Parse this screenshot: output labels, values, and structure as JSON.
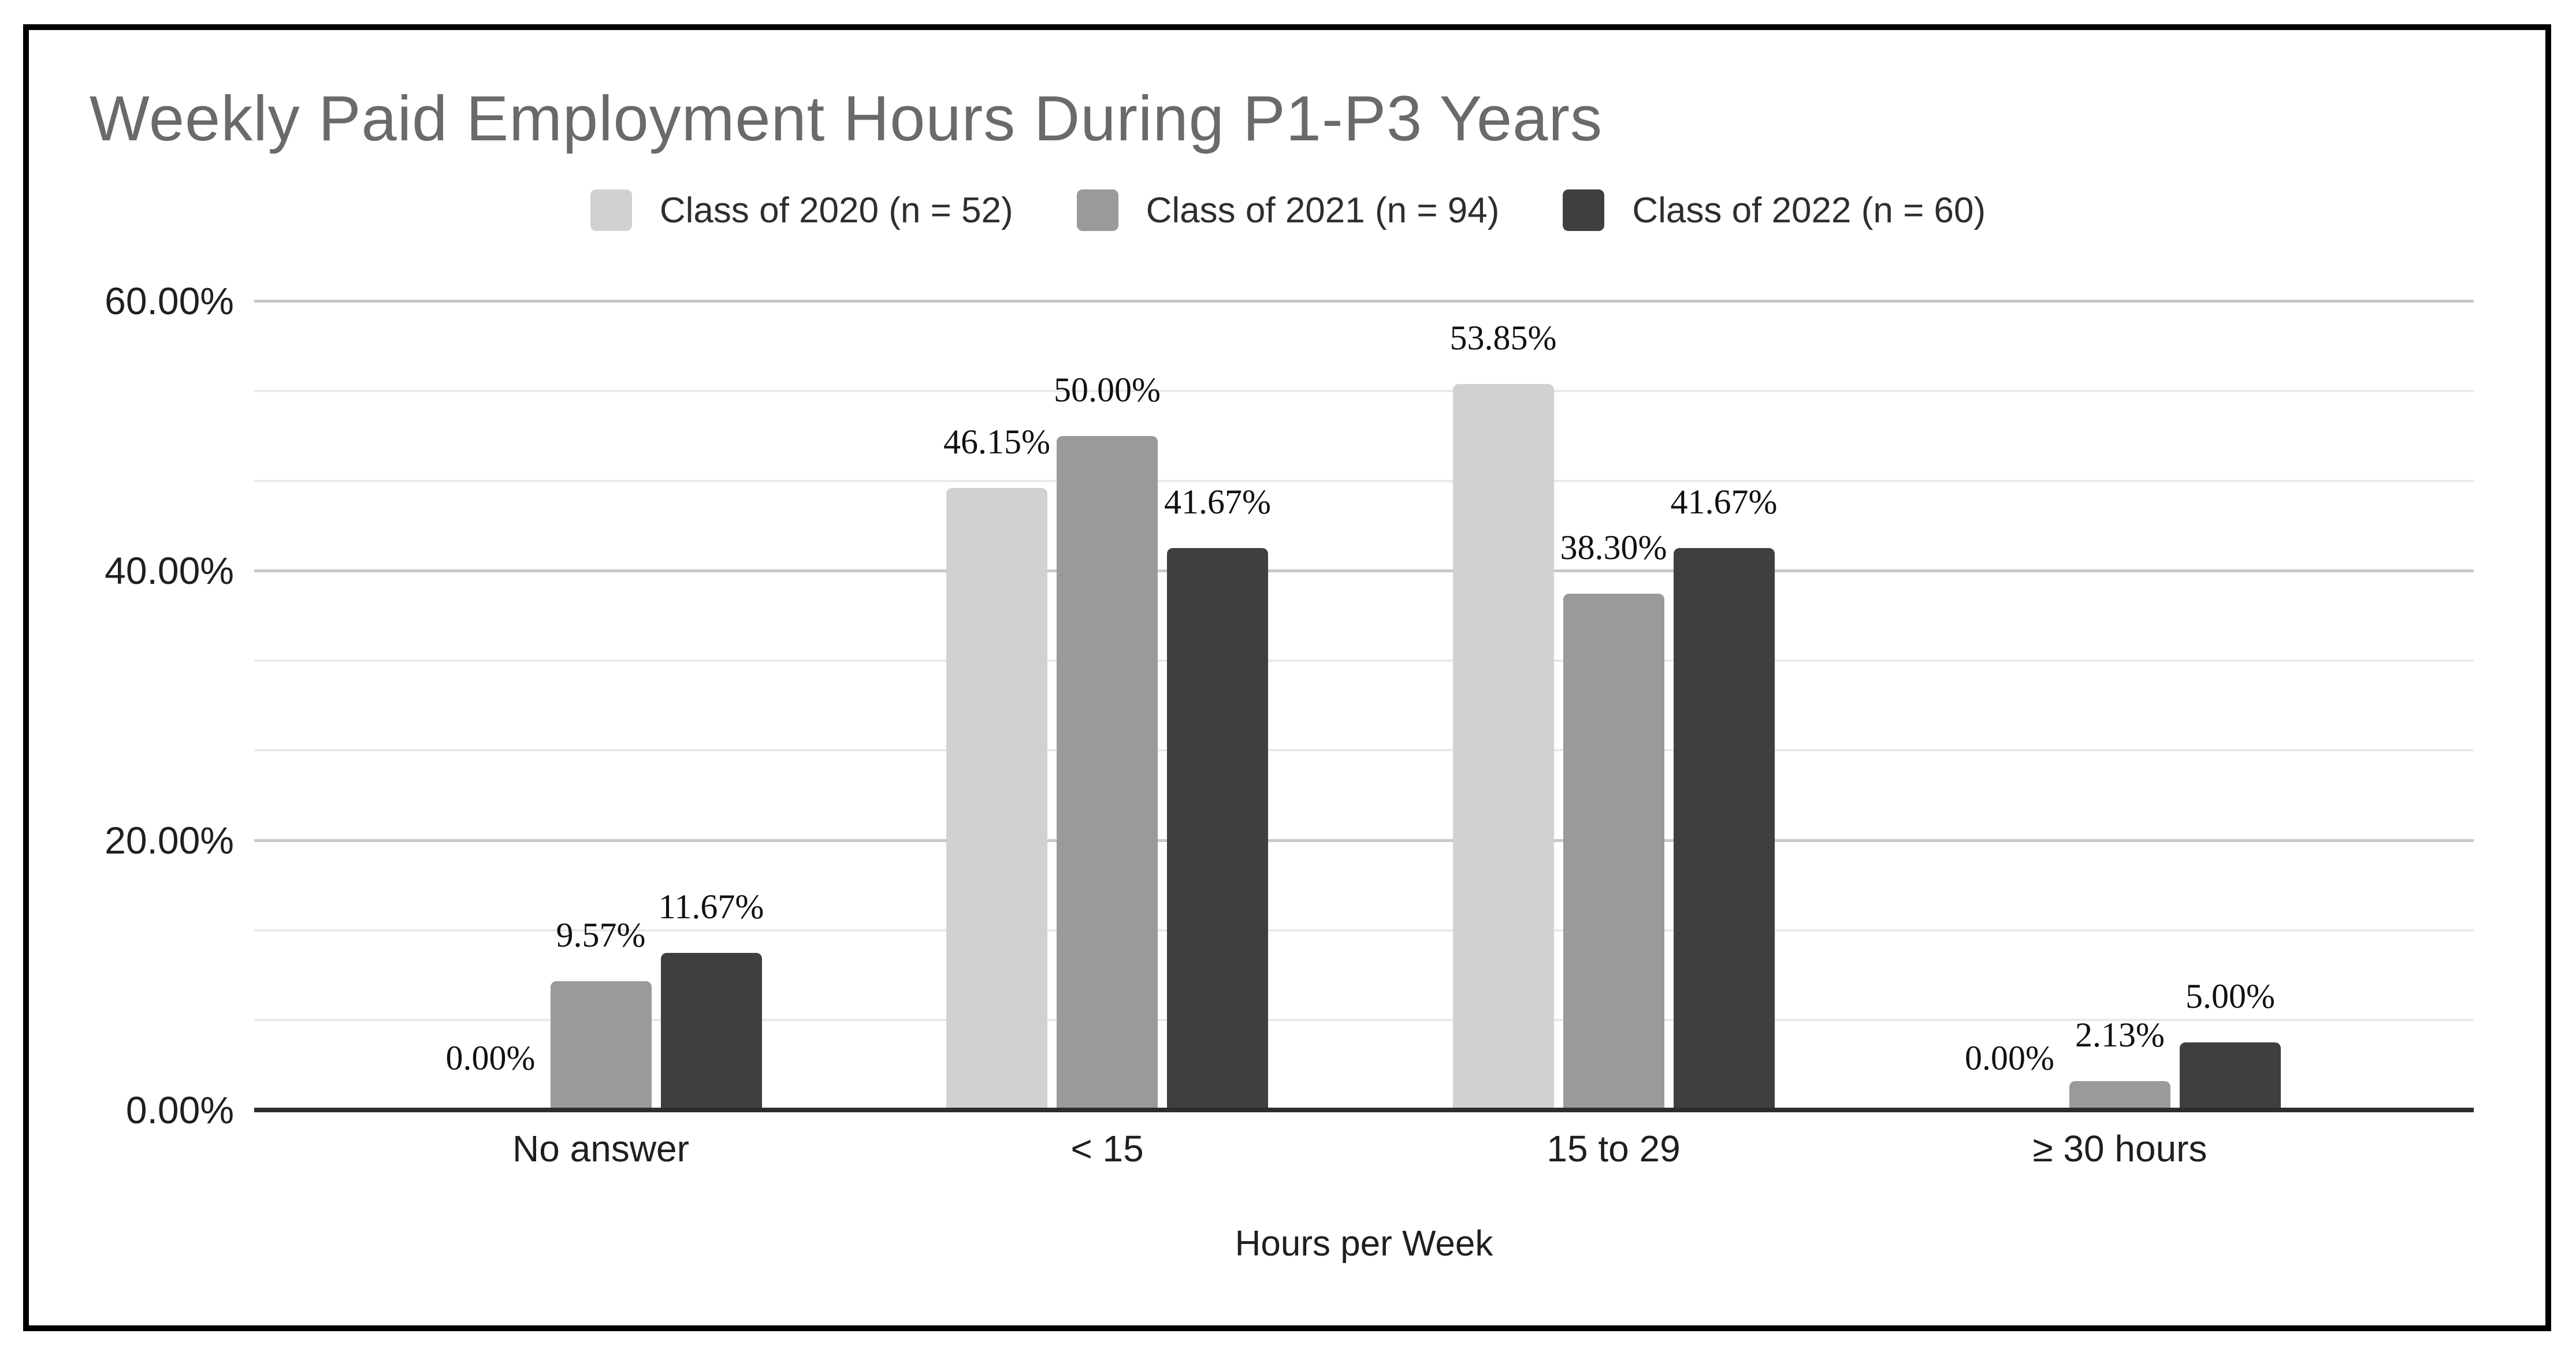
{
  "title": "Weekly Paid Employment Hours During P1-P3 Years",
  "xlabel": "Hours per Week",
  "chart_data": {
    "type": "bar",
    "title": "Weekly Paid Employment Hours During P1-P3 Years",
    "xlabel": "Hours per Week",
    "ylabel": "",
    "categories": [
      "No answer",
      "< 15",
      "15 to 29",
      "≥ 30 hours"
    ],
    "series": [
      {
        "name": "Class of 2020 (n = 52)",
        "color": "#d1d1d1",
        "values": [
          0.0,
          46.15,
          53.85,
          0.0
        ],
        "labels": [
          "0.00%",
          "46.15%",
          "53.85%",
          "0.00%"
        ]
      },
      {
        "name": "Class of 2021 (n = 94)",
        "color": "#9a9a9a",
        "values": [
          9.57,
          50.0,
          38.3,
          2.13
        ],
        "labels": [
          "9.57%",
          "50.00%",
          "38.30%",
          "2.13%"
        ]
      },
      {
        "name": "Class of 2022 (n = 60)",
        "color": "#3f3f3f",
        "values": [
          11.67,
          41.67,
          41.67,
          5.0
        ],
        "labels": [
          "11.67%",
          "41.67%",
          "41.67%",
          "5.00%"
        ]
      }
    ],
    "y_ticks": [
      "0.00%",
      "20.00%",
      "40.00%",
      "60.00%"
    ],
    "y_tick_values": [
      0,
      20,
      40,
      60
    ],
    "ylim": [
      0,
      60
    ],
    "minor_gridline_step_pct": 6.667,
    "major_gridline_step_pct": 20,
    "grid": "on",
    "legend_position": "top",
    "colors": {
      "title_text": "#6a6a6a",
      "axis_text": "#1f1f1f",
      "data_label_text": "#111111",
      "major_gridline": "#c8c8c8",
      "minor_gridline": "#e9e9e9",
      "axis_line": "#2d2d2d",
      "frame_border": "#000000",
      "background": "#ffffff"
    }
  }
}
